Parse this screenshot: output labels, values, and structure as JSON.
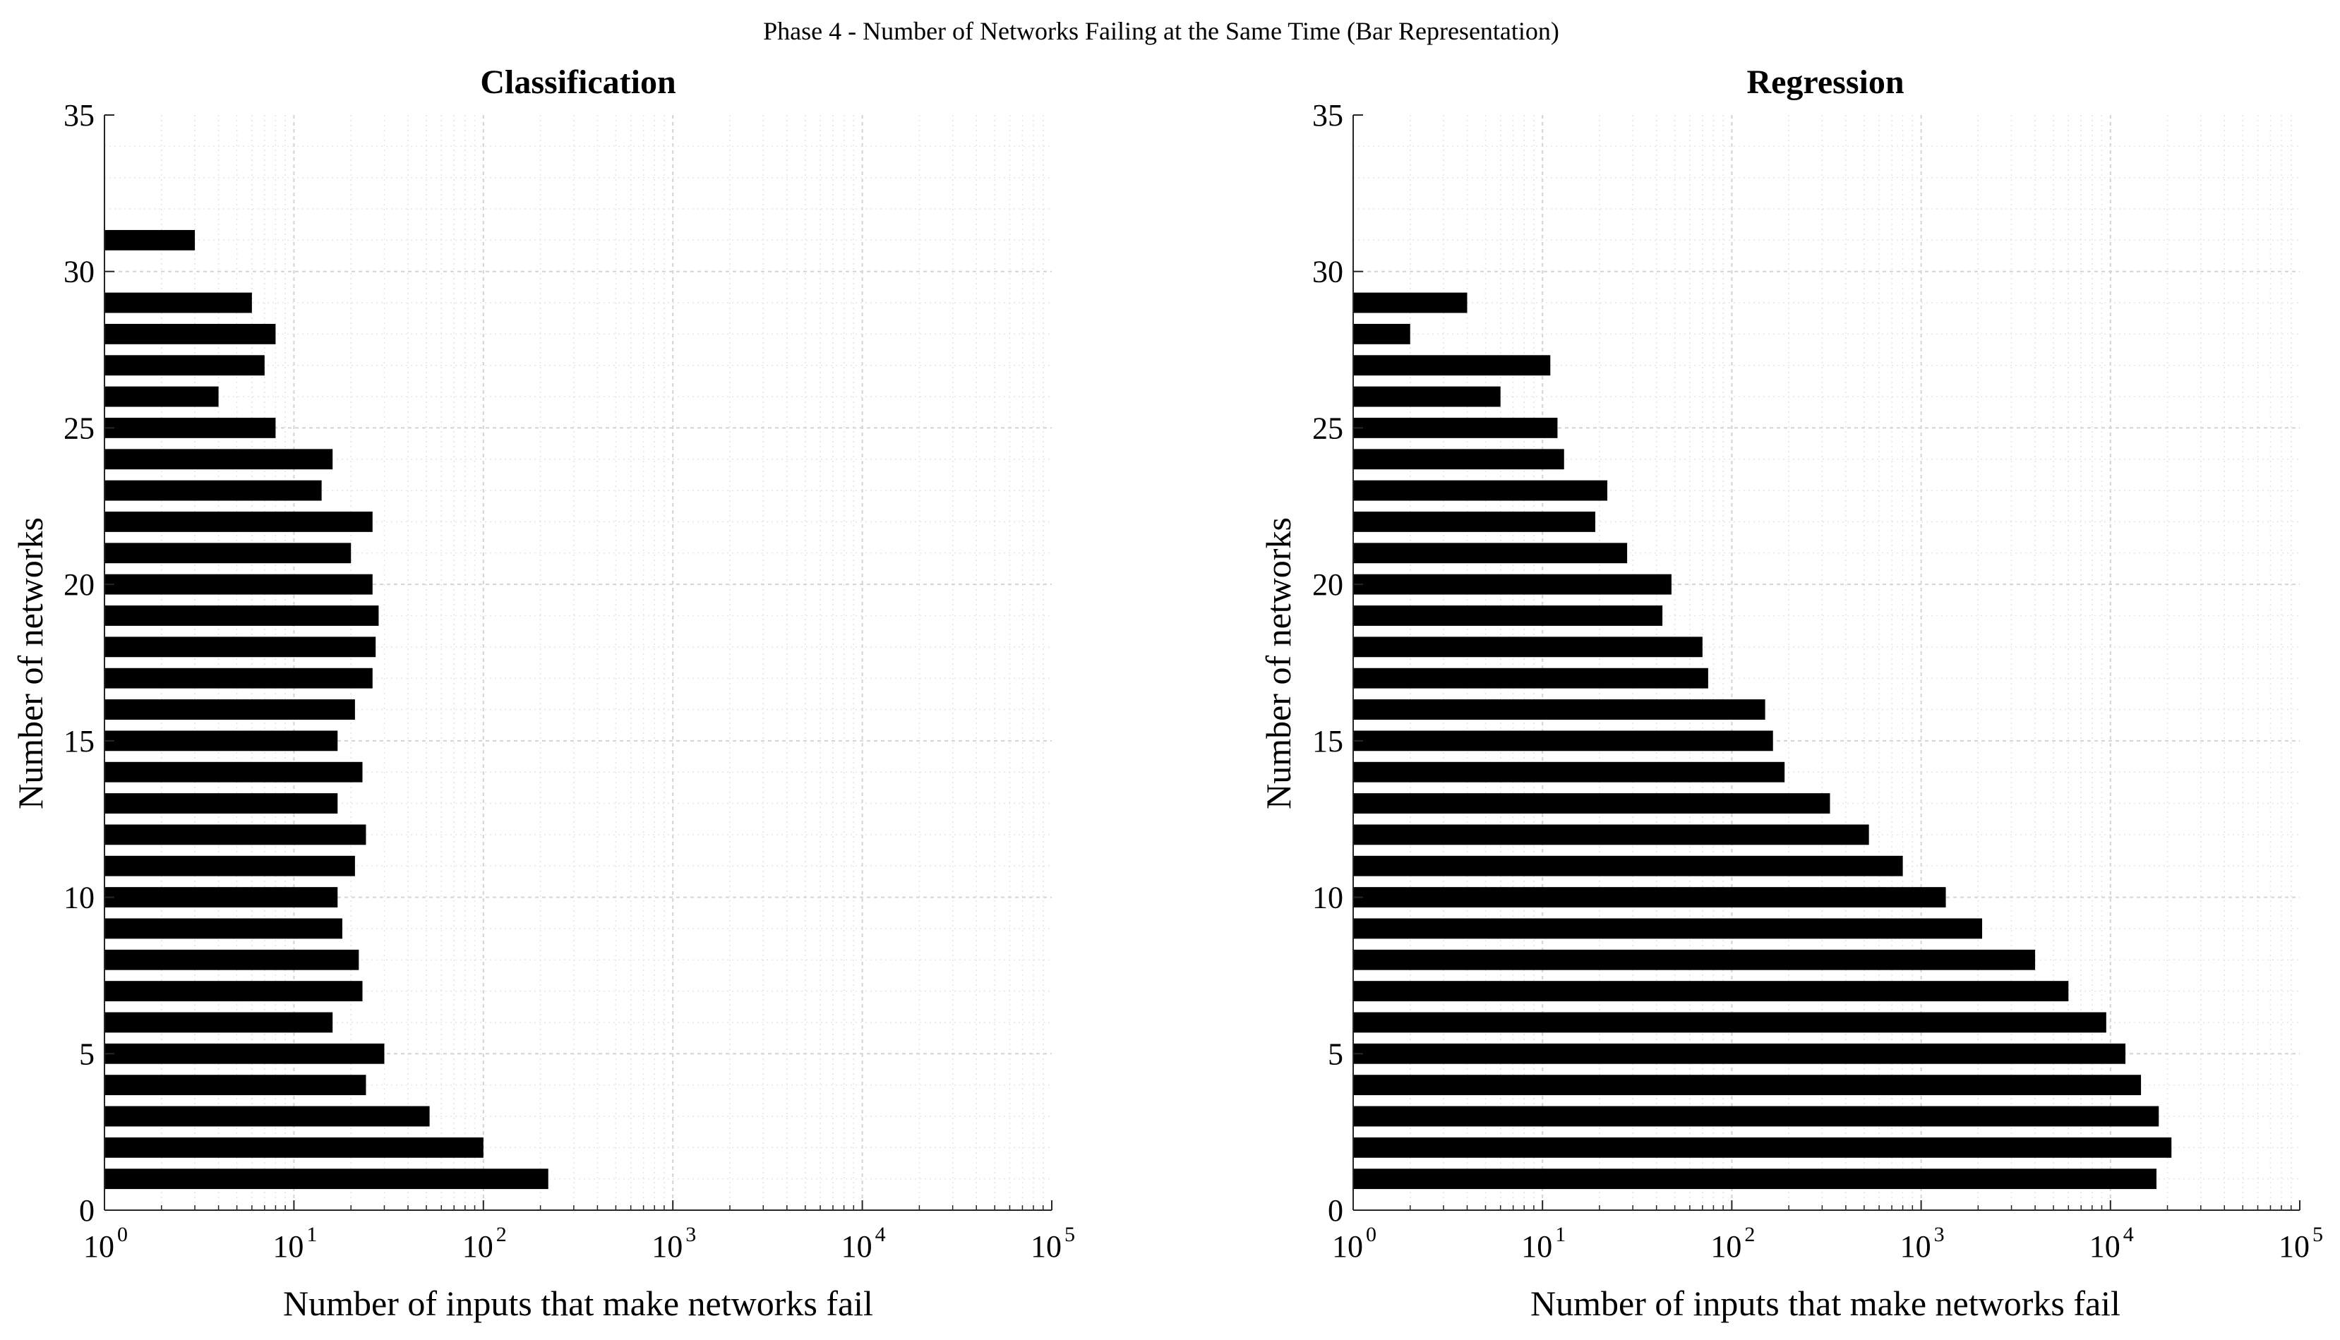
{
  "figure_title": "Phase 4 - Number of Networks Failing at the Same Time (Bar Representation)",
  "chart_data": [
    {
      "type": "bar",
      "orientation": "horizontal",
      "title": "Classification",
      "xlabel": "Number of inputs that make networks fail",
      "ylabel": "Number of networks",
      "xscale": "log",
      "xlim": [
        1,
        100000
      ],
      "ylim": [
        0,
        35
      ],
      "xticks": [
        {
          "base": "10",
          "exp": "0"
        },
        {
          "base": "10",
          "exp": "1"
        },
        {
          "base": "10",
          "exp": "2"
        },
        {
          "base": "10",
          "exp": "3"
        },
        {
          "base": "10",
          "exp": "4"
        },
        {
          "base": "10",
          "exp": "5"
        }
      ],
      "yticks": [
        "0",
        "5",
        "10",
        "15",
        "20",
        "25",
        "30",
        "35"
      ],
      "grid": true,
      "bar_color": "#000000",
      "categories": [
        1,
        2,
        3,
        4,
        5,
        6,
        7,
        8,
        9,
        10,
        11,
        12,
        13,
        14,
        15,
        16,
        17,
        18,
        19,
        20,
        21,
        22,
        23,
        24,
        25,
        26,
        27,
        28,
        29,
        31
      ],
      "values": [
        220,
        100,
        52,
        24,
        30,
        16,
        23,
        22,
        18,
        17,
        21,
        24,
        17,
        23,
        17,
        21,
        26,
        27,
        28,
        26,
        20,
        26,
        14,
        16,
        8,
        4,
        7,
        8,
        6,
        3
      ]
    },
    {
      "type": "bar",
      "orientation": "horizontal",
      "title": "Regression",
      "xlabel": "Number of inputs that make networks fail",
      "ylabel": "Number of networks",
      "xscale": "log",
      "xlim": [
        1,
        100000
      ],
      "ylim": [
        0,
        35
      ],
      "xticks": [
        {
          "base": "10",
          "exp": "0"
        },
        {
          "base": "10",
          "exp": "1"
        },
        {
          "base": "10",
          "exp": "2"
        },
        {
          "base": "10",
          "exp": "3"
        },
        {
          "base": "10",
          "exp": "4"
        },
        {
          "base": "10",
          "exp": "5"
        }
      ],
      "yticks": [
        "0",
        "5",
        "10",
        "15",
        "20",
        "25",
        "30",
        "35"
      ],
      "grid": true,
      "bar_color": "#000000",
      "categories": [
        1,
        2,
        3,
        4,
        5,
        6,
        7,
        8,
        9,
        10,
        11,
        12,
        13,
        14,
        15,
        16,
        17,
        18,
        19,
        20,
        21,
        22,
        23,
        24,
        25,
        26,
        27,
        28,
        29
      ],
      "values": [
        17500,
        21000,
        18000,
        14500,
        12000,
        9500,
        6000,
        4000,
        2100,
        1350,
        800,
        530,
        330,
        190,
        165,
        150,
        75,
        70,
        43,
        48,
        28,
        19,
        22,
        13,
        12,
        6,
        11,
        2,
        4
      ]
    }
  ]
}
